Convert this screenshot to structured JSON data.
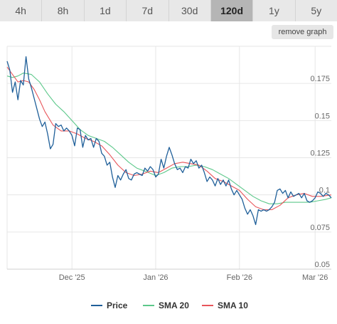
{
  "tabs": [
    {
      "label": "4h",
      "active": false
    },
    {
      "label": "8h",
      "active": false
    },
    {
      "label": "1d",
      "active": false
    },
    {
      "label": "7d",
      "active": false
    },
    {
      "label": "30d",
      "active": false
    },
    {
      "label": "120d",
      "active": true
    },
    {
      "label": "1y",
      "active": false
    },
    {
      "label": "5y",
      "active": false
    }
  ],
  "remove_graph_label": "remove graph",
  "chart_data": {
    "type": "line",
    "title": "",
    "xlabel": "",
    "ylabel": "",
    "x_range": [
      "2025-11-07",
      "2026-03-07"
    ],
    "ylim": [
      0.05,
      0.2
    ],
    "y_ticks": [
      0.05,
      0.075,
      0.1,
      0.125,
      0.15,
      0.175
    ],
    "y_tick_labels": [
      "0.05",
      "0.075",
      "0.1",
      "0.125",
      "0.15",
      "0.175"
    ],
    "x_ticks": [
      {
        "date": "2025-12-01",
        "label": "Dec '25"
      },
      {
        "date": "2026-01-01",
        "label": "Jan '26"
      },
      {
        "date": "2026-02-01",
        "label": "Feb '26"
      },
      {
        "date": "2026-03-01",
        "label": "Mar '26"
      }
    ],
    "grid": true,
    "legend_position": "bottom",
    "series": [
      {
        "name": "Price",
        "color": "#1f5f99",
        "points": [
          [
            "2025-11-07",
            0.19
          ],
          [
            "2025-11-08",
            0.184
          ],
          [
            "2025-11-09",
            0.169
          ],
          [
            "2025-11-10",
            0.176
          ],
          [
            "2025-11-11",
            0.164
          ],
          [
            "2025-11-12",
            0.177
          ],
          [
            "2025-11-13",
            0.174
          ],
          [
            "2025-11-14",
            0.193
          ],
          [
            "2025-11-15",
            0.178
          ],
          [
            "2025-11-16",
            0.172
          ],
          [
            "2025-11-17",
            0.165
          ],
          [
            "2025-11-18",
            0.158
          ],
          [
            "2025-11-19",
            0.151
          ],
          [
            "2025-11-20",
            0.146
          ],
          [
            "2025-11-21",
            0.149
          ],
          [
            "2025-11-22",
            0.141
          ],
          [
            "2025-11-23",
            0.131
          ],
          [
            "2025-11-24",
            0.134
          ],
          [
            "2025-11-25",
            0.148
          ],
          [
            "2025-11-26",
            0.146
          ],
          [
            "2025-11-27",
            0.147
          ],
          [
            "2025-11-28",
            0.143
          ],
          [
            "2025-11-29",
            0.145
          ],
          [
            "2025-11-30",
            0.143
          ],
          [
            "2025-12-01",
            0.14
          ],
          [
            "2025-12-02",
            0.133
          ],
          [
            "2025-12-03",
            0.145
          ],
          [
            "2025-12-04",
            0.144
          ],
          [
            "2025-12-05",
            0.132
          ],
          [
            "2025-12-06",
            0.14
          ],
          [
            "2025-12-07",
            0.137
          ],
          [
            "2025-12-08",
            0.138
          ],
          [
            "2025-12-09",
            0.132
          ],
          [
            "2025-12-10",
            0.138
          ],
          [
            "2025-12-11",
            0.136
          ],
          [
            "2025-12-12",
            0.128
          ],
          [
            "2025-12-13",
            0.126
          ],
          [
            "2025-12-14",
            0.12
          ],
          [
            "2025-12-15",
            0.122
          ],
          [
            "2025-12-16",
            0.112
          ],
          [
            "2025-12-17",
            0.105
          ],
          [
            "2025-12-18",
            0.113
          ],
          [
            "2025-12-19",
            0.11
          ],
          [
            "2025-12-20",
            0.114
          ],
          [
            "2025-12-21",
            0.117
          ],
          [
            "2025-12-22",
            0.111
          ],
          [
            "2025-12-23",
            0.11
          ],
          [
            "2025-12-24",
            0.114
          ],
          [
            "2025-12-25",
            0.115
          ],
          [
            "2025-12-26",
            0.114
          ],
          [
            "2025-12-27",
            0.113
          ],
          [
            "2025-12-28",
            0.118
          ],
          [
            "2025-12-29",
            0.116
          ],
          [
            "2025-12-30",
            0.119
          ],
          [
            "2025-12-31",
            0.117
          ],
          [
            "2026-01-01",
            0.112
          ],
          [
            "2026-01-02",
            0.114
          ],
          [
            "2026-01-03",
            0.124
          ],
          [
            "2026-01-04",
            0.118
          ],
          [
            "2026-01-05",
            0.126
          ],
          [
            "2026-01-06",
            0.132
          ],
          [
            "2026-01-07",
            0.127
          ],
          [
            "2026-01-08",
            0.121
          ],
          [
            "2026-01-09",
            0.117
          ],
          [
            "2026-01-10",
            0.118
          ],
          [
            "2026-01-11",
            0.115
          ],
          [
            "2026-01-12",
            0.119
          ],
          [
            "2026-01-13",
            0.118
          ],
          [
            "2026-01-14",
            0.124
          ],
          [
            "2026-01-15",
            0.121
          ],
          [
            "2026-01-16",
            0.123
          ],
          [
            "2026-01-17",
            0.118
          ],
          [
            "2026-01-18",
            0.12
          ],
          [
            "2026-01-19",
            0.115
          ],
          [
            "2026-01-20",
            0.109
          ],
          [
            "2026-01-21",
            0.112
          ],
          [
            "2026-01-22",
            0.11
          ],
          [
            "2026-01-23",
            0.106
          ],
          [
            "2026-01-24",
            0.111
          ],
          [
            "2026-01-25",
            0.107
          ],
          [
            "2026-01-26",
            0.11
          ],
          [
            "2026-01-27",
            0.106
          ],
          [
            "2026-01-28",
            0.11
          ],
          [
            "2026-01-29",
            0.104
          ],
          [
            "2026-01-30",
            0.1
          ],
          [
            "2026-01-31",
            0.103
          ],
          [
            "2026-02-01",
            0.1
          ],
          [
            "2026-02-02",
            0.097
          ],
          [
            "2026-02-03",
            0.091
          ],
          [
            "2026-02-04",
            0.087
          ],
          [
            "2026-02-05",
            0.09
          ],
          [
            "2026-02-06",
            0.086
          ],
          [
            "2026-02-07",
            0.08
          ],
          [
            "2026-02-08",
            0.09
          ],
          [
            "2026-02-09",
            0.089
          ],
          [
            "2026-02-10",
            0.09
          ],
          [
            "2026-02-11",
            0.089
          ],
          [
            "2026-02-12",
            0.09
          ],
          [
            "2026-02-13",
            0.092
          ],
          [
            "2026-02-14",
            0.095
          ],
          [
            "2026-02-15",
            0.103
          ],
          [
            "2026-02-16",
            0.104
          ],
          [
            "2026-02-17",
            0.101
          ],
          [
            "2026-02-18",
            0.103
          ],
          [
            "2026-02-19",
            0.098
          ],
          [
            "2026-02-20",
            0.102
          ],
          [
            "2026-02-21",
            0.099
          ],
          [
            "2026-02-22",
            0.1
          ],
          [
            "2026-02-23",
            0.101
          ],
          [
            "2026-02-24",
            0.098
          ],
          [
            "2026-02-25",
            0.101
          ],
          [
            "2026-02-26",
            0.096
          ],
          [
            "2026-02-27",
            0.095
          ],
          [
            "2026-02-28",
            0.096
          ],
          [
            "2026-03-01",
            0.098
          ],
          [
            "2026-03-02",
            0.102
          ],
          [
            "2026-03-03",
            0.101
          ],
          [
            "2026-03-04",
            0.099
          ],
          [
            "2026-03-05",
            0.101
          ],
          [
            "2026-03-06",
            0.1
          ],
          [
            "2026-03-07",
            0.098
          ]
        ]
      },
      {
        "name": "SMA 20",
        "color": "#5cc88a",
        "points": [
          [
            "2025-11-07",
            0.18
          ],
          [
            "2025-11-09",
            0.179
          ],
          [
            "2025-11-11",
            0.18
          ],
          [
            "2025-11-13",
            0.182
          ],
          [
            "2025-11-16",
            0.181
          ],
          [
            "2025-11-19",
            0.176
          ],
          [
            "2025-11-22",
            0.168
          ],
          [
            "2025-11-25",
            0.161
          ],
          [
            "2025-11-28",
            0.156
          ],
          [
            "2025-12-01",
            0.15
          ],
          [
            "2025-12-04",
            0.144
          ],
          [
            "2025-12-07",
            0.14
          ],
          [
            "2025-12-10",
            0.138
          ],
          [
            "2025-12-13",
            0.136
          ],
          [
            "2025-12-16",
            0.132
          ],
          [
            "2025-12-19",
            0.127
          ],
          [
            "2025-12-22",
            0.122
          ],
          [
            "2025-12-25",
            0.118
          ],
          [
            "2025-12-28",
            0.116
          ],
          [
            "2026-01-01",
            0.113
          ],
          [
            "2026-01-04",
            0.115
          ],
          [
            "2026-01-07",
            0.118
          ],
          [
            "2026-01-10",
            0.119
          ],
          [
            "2026-01-13",
            0.119
          ],
          [
            "2026-01-16",
            0.12
          ],
          [
            "2026-01-19",
            0.119
          ],
          [
            "2026-01-22",
            0.117
          ],
          [
            "2026-01-25",
            0.114
          ],
          [
            "2026-01-28",
            0.111
          ],
          [
            "2026-01-31",
            0.107
          ],
          [
            "2026-02-03",
            0.103
          ],
          [
            "2026-02-06",
            0.099
          ],
          [
            "2026-02-09",
            0.096
          ],
          [
            "2026-02-12",
            0.094
          ],
          [
            "2026-02-15",
            0.094
          ],
          [
            "2026-02-18",
            0.095
          ],
          [
            "2026-02-21",
            0.095
          ],
          [
            "2026-02-24",
            0.095
          ],
          [
            "2026-02-27",
            0.095
          ],
          [
            "2026-03-02",
            0.096
          ],
          [
            "2026-03-05",
            0.097
          ],
          [
            "2026-03-07",
            0.098
          ]
        ]
      },
      {
        "name": "SMA 10",
        "color": "#e8555a",
        "points": [
          [
            "2025-11-07",
            0.186
          ],
          [
            "2025-11-09",
            0.181
          ],
          [
            "2025-11-11",
            0.176
          ],
          [
            "2025-11-13",
            0.177
          ],
          [
            "2025-11-15",
            0.176
          ],
          [
            "2025-11-17",
            0.171
          ],
          [
            "2025-11-19",
            0.164
          ],
          [
            "2025-11-21",
            0.156
          ],
          [
            "2025-11-24",
            0.147
          ],
          [
            "2025-11-27",
            0.143
          ],
          [
            "2025-11-30",
            0.143
          ],
          [
            "2025-12-03",
            0.141
          ],
          [
            "2025-12-06",
            0.138
          ],
          [
            "2025-12-09",
            0.136
          ],
          [
            "2025-12-12",
            0.133
          ],
          [
            "2025-12-15",
            0.127
          ],
          [
            "2025-12-18",
            0.12
          ],
          [
            "2025-12-21",
            0.115
          ],
          [
            "2025-12-24",
            0.113
          ],
          [
            "2025-12-27",
            0.114
          ],
          [
            "2025-12-30",
            0.116
          ],
          [
            "2026-01-02",
            0.115
          ],
          [
            "2026-01-05",
            0.118
          ],
          [
            "2026-01-08",
            0.121
          ],
          [
            "2026-01-11",
            0.122
          ],
          [
            "2026-01-14",
            0.121
          ],
          [
            "2026-01-17",
            0.12
          ],
          [
            "2026-01-20",
            0.116
          ],
          [
            "2026-01-23",
            0.111
          ],
          [
            "2026-01-26",
            0.109
          ],
          [
            "2026-01-29",
            0.106
          ],
          [
            "2026-02-01",
            0.103
          ],
          [
            "2026-02-04",
            0.097
          ],
          [
            "2026-02-07",
            0.092
          ],
          [
            "2026-02-10",
            0.09
          ],
          [
            "2026-02-13",
            0.09
          ],
          [
            "2026-02-16",
            0.093
          ],
          [
            "2026-02-19",
            0.098
          ],
          [
            "2026-02-22",
            0.1
          ],
          [
            "2026-02-25",
            0.101
          ],
          [
            "2026-02-28",
            0.099
          ],
          [
            "2026-03-03",
            0.099
          ],
          [
            "2026-03-07",
            0.1
          ]
        ]
      }
    ]
  }
}
